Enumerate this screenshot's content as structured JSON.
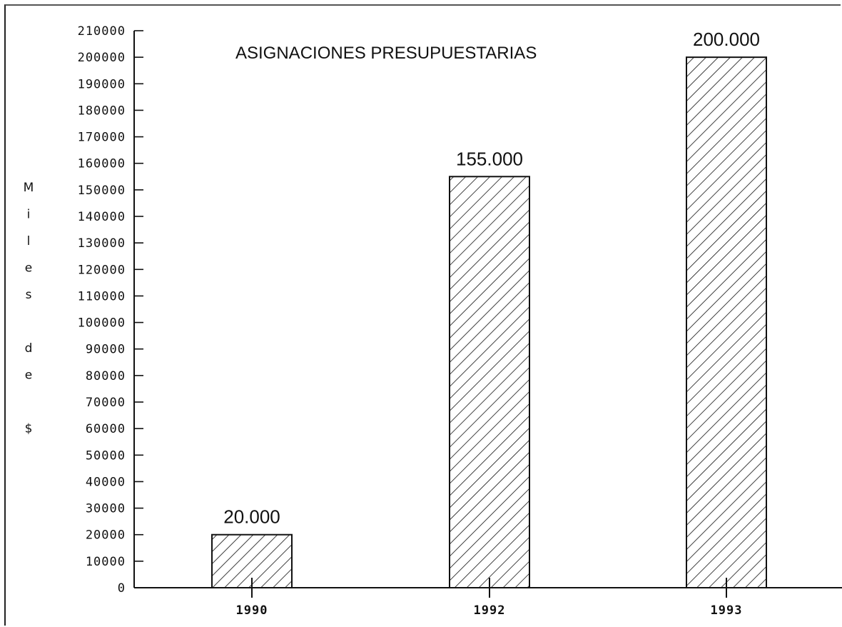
{
  "chart_data": {
    "type": "bar",
    "title": "ASIGNACIONES PRESUPUESTARIAS",
    "ylabel": "Miles de $",
    "ylabel_chars": [
      "M",
      "i",
      "l",
      "e",
      "s",
      "",
      "d",
      "e",
      "",
      "$"
    ],
    "xlabel": "",
    "categories": [
      "1990",
      "1992",
      "1993"
    ],
    "values": [
      20000,
      155000,
      200000
    ],
    "data_labels": [
      "20.000",
      "155.000",
      "200.000"
    ],
    "ylim": [
      0,
      210000
    ],
    "ytick_step": 10000,
    "grid": false,
    "legend": "none",
    "bar_fill": "diagonal hatch",
    "colors": {
      "bar_stroke": "#111111",
      "hatch": "#111111",
      "axis": "#111111",
      "background": "#ffffff"
    }
  }
}
